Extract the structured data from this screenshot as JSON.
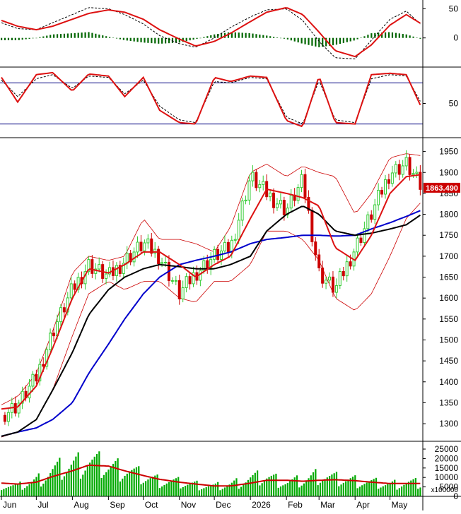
{
  "chart_data": [
    {
      "type": "line",
      "panel": "macd",
      "y_ticks": [
        50,
        0
      ],
      "ylim": [
        -50,
        65
      ],
      "colors": {
        "signal": "#dd1111",
        "macd": "#000000",
        "histogram": "#006600"
      },
      "x": [
        "2025-06-01",
        "2025-06-15",
        "2025-07-01",
        "2025-07-15",
        "2025-08-01",
        "2025-08-15",
        "2025-09-01",
        "2025-09-15",
        "2025-10-01",
        "2025-10-15",
        "2025-11-01",
        "2025-11-15",
        "2025-12-01",
        "2025-12-15",
        "2026-01-01",
        "2026-01-15",
        "2026-02-01",
        "2026-02-15",
        "2026-03-01",
        "2026-03-15",
        "2026-04-01",
        "2026-04-15",
        "2026-05-01",
        "2026-05-15",
        "2026-05-28"
      ],
      "series": [
        {
          "role": "signal",
          "values": [
            30,
            20,
            14,
            20,
            32,
            42,
            48,
            44,
            32,
            14,
            -2,
            -14,
            -6,
            8,
            28,
            44,
            52,
            40,
            10,
            -22,
            -32,
            -12,
            22,
            40,
            24
          ]
        },
        {
          "role": "macd",
          "values": [
            26,
            16,
            14,
            26,
            40,
            52,
            50,
            40,
            24,
            4,
            -10,
            -16,
            0,
            18,
            36,
            48,
            50,
            30,
            -6,
            -34,
            -36,
            -4,
            32,
            46,
            22
          ]
        },
        {
          "role": "histogram",
          "values": [
            -4,
            -4,
            0,
            6,
            8,
            10,
            2,
            -4,
            -8,
            -10,
            -8,
            -2,
            6,
            10,
            8,
            4,
            -2,
            -10,
            -16,
            -12,
            -4,
            8,
            10,
            6,
            -2
          ]
        }
      ]
    },
    {
      "type": "line",
      "panel": "stochastic",
      "y_ticks": [
        50
      ],
      "ylim": [
        0,
        100
      ],
      "reference_lines": [
        80,
        20
      ],
      "colors": {
        "k": "#dd1111",
        "d": "#000000",
        "reference": "#000080"
      },
      "x": [
        "2025-06-01",
        "2025-06-15",
        "2025-07-01",
        "2025-07-15",
        "2025-08-01",
        "2025-08-15",
        "2025-09-01",
        "2025-09-15",
        "2025-10-01",
        "2025-10-15",
        "2025-11-01",
        "2025-11-15",
        "2025-12-01",
        "2025-12-15",
        "2026-01-01",
        "2026-01-15",
        "2026-02-01",
        "2026-02-15",
        "2026-03-01",
        "2026-03-15",
        "2026-04-01",
        "2026-04-15",
        "2026-05-01",
        "2026-05-15",
        "2026-05-28"
      ],
      "series": [
        {
          "role": "k",
          "values": [
            88,
            52,
            92,
            95,
            68,
            93,
            90,
            60,
            88,
            40,
            22,
            20,
            88,
            82,
            90,
            88,
            25,
            16,
            90,
            22,
            20,
            92,
            94,
            92,
            44
          ]
        },
        {
          "role": "d",
          "values": [
            84,
            60,
            86,
            92,
            72,
            90,
            88,
            64,
            84,
            46,
            26,
            22,
            82,
            80,
            88,
            86,
            30,
            20,
            84,
            26,
            22,
            86,
            92,
            90,
            50
          ]
        }
      ]
    },
    {
      "type": "candlestick",
      "panel": "price",
      "y_ticks": [
        1950,
        1900,
        1850,
        1800,
        1750,
        1700,
        1650,
        1600,
        1550,
        1500,
        1450,
        1400,
        1350,
        1300
      ],
      "ylim": [
        1258,
        1978
      ],
      "last_price_label": "1863.490",
      "colors": {
        "up": "#33cc33",
        "down": "#cc0000",
        "ma_short": "#dd1111",
        "ma_mid": "#000000",
        "ma_long": "#0000cc",
        "band": "#cc0000",
        "last_price_bg": "#cc0000"
      },
      "x": [
        "2025-06-01",
        "2025-06-15",
        "2025-07-01",
        "2025-07-15",
        "2025-08-01",
        "2025-08-15",
        "2025-09-01",
        "2025-09-15",
        "2025-10-01",
        "2025-10-15",
        "2025-11-01",
        "2025-11-15",
        "2025-12-01",
        "2025-12-15",
        "2026-01-01",
        "2026-01-15",
        "2026-02-01",
        "2026-02-15",
        "2026-03-01",
        "2026-03-15",
        "2026-04-01",
        "2026-04-15",
        "2026-05-01",
        "2026-05-15",
        "2026-05-28"
      ],
      "close": [
        1320,
        1345,
        1410,
        1520,
        1620,
        1680,
        1650,
        1690,
        1730,
        1700,
        1610,
        1660,
        1700,
        1720,
        1890,
        1850,
        1810,
        1880,
        1660,
        1620,
        1720,
        1800,
        1900,
        1920,
        1863
      ],
      "ma_short": [
        1335,
        1340,
        1390,
        1480,
        1600,
        1670,
        1660,
        1680,
        1710,
        1710,
        1680,
        1650,
        1680,
        1700,
        1790,
        1860,
        1850,
        1840,
        1820,
        1720,
        1690,
        1750,
        1850,
        1890,
        1895
      ],
      "ma_mid": [
        1270,
        1280,
        1310,
        1380,
        1470,
        1560,
        1620,
        1650,
        1670,
        1680,
        1675,
        1670,
        1670,
        1680,
        1700,
        1760,
        1800,
        1820,
        1800,
        1760,
        1750,
        1755,
        1765,
        1775,
        1800
      ],
      "ma_long": [
        1270,
        1280,
        1290,
        1310,
        1350,
        1420,
        1490,
        1550,
        1610,
        1650,
        1680,
        1690,
        1700,
        1710,
        1730,
        1740,
        1745,
        1750,
        1750,
        1748,
        1750,
        1765,
        1780,
        1795,
        1810
      ],
      "band_upper": [
        1345,
        1365,
        1420,
        1520,
        1660,
        1700,
        1690,
        1700,
        1790,
        1740,
        1740,
        1730,
        1710,
        1770,
        1900,
        1920,
        1890,
        1915,
        1900,
        1890,
        1800,
        1850,
        1935,
        1945,
        1940
      ],
      "band_lower": [
        1268,
        1280,
        1310,
        1380,
        1510,
        1610,
        1640,
        1620,
        1640,
        1640,
        1600,
        1590,
        1640,
        1640,
        1680,
        1760,
        1760,
        1740,
        1690,
        1600,
        1570,
        1610,
        1700,
        1790,
        1830
      ],
      "xlabels": [
        "Jun",
        "Jul",
        "Aug",
        "Sep",
        "Oct",
        "Nov",
        "Dec",
        "2026",
        "Feb",
        "Mar",
        "Apr",
        "May"
      ]
    },
    {
      "type": "bar",
      "panel": "volume",
      "y_ticks": [
        25000,
        20000,
        15000,
        10000,
        5000,
        0
      ],
      "ylim": [
        0,
        28000
      ],
      "unit_label": "x100000",
      "colors": {
        "bar": "#00aa00",
        "ma": "#cc0000"
      },
      "x": [
        "2025-06-01",
        "2025-06-15",
        "2025-07-01",
        "2025-07-15",
        "2025-08-01",
        "2025-08-15",
        "2025-09-01",
        "2025-09-15",
        "2025-10-01",
        "2025-10-15",
        "2025-11-01",
        "2025-11-15",
        "2025-12-01",
        "2025-12-15",
        "2026-01-01",
        "2026-01-15",
        "2026-02-01",
        "2026-02-15",
        "2026-03-01",
        "2026-03-15",
        "2026-04-01",
        "2026-04-15",
        "2026-05-01",
        "2026-05-15",
        "2026-05-28"
      ],
      "values": [
        6000,
        5000,
        8000,
        13000,
        16000,
        18000,
        15000,
        14000,
        10000,
        8000,
        7000,
        6000,
        5000,
        6000,
        9000,
        10000,
        7000,
        8000,
        11000,
        9000,
        8000,
        7000,
        6000,
        7000,
        6500
      ],
      "ma": [
        7000,
        6500,
        7500,
        10500,
        13500,
        16500,
        16000,
        13500,
        11000,
        9000,
        7500,
        6500,
        5500,
        5500,
        7000,
        8500,
        8500,
        8000,
        8500,
        8800,
        8300,
        7500,
        6800,
        6800,
        6800
      ]
    }
  ]
}
